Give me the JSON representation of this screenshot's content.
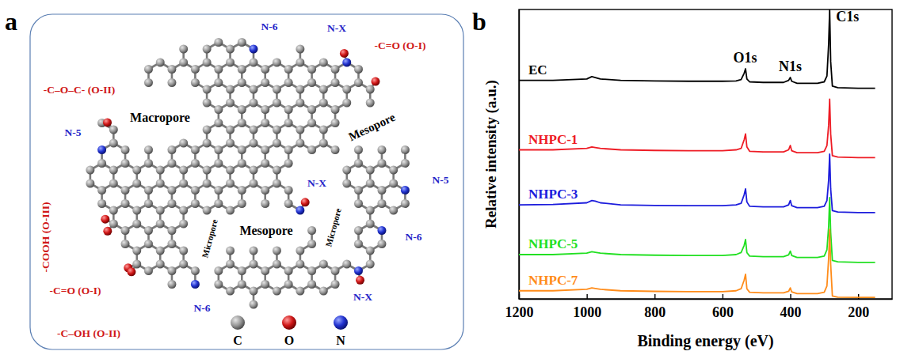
{
  "diagram": {
    "letter": "a",
    "groups": [
      "N-5",
      "N-6",
      "N-X",
      "-C=O (O-I)",
      "-C–O–C- (O-II)",
      "N-5",
      "-COOH (O-III)",
      "N-X",
      "N-6",
      "-C=O (O-I)",
      "-C–OH (O-II)",
      "N-6",
      "N-X"
    ],
    "pores": [
      "Macropore",
      "Mesopore",
      "Mesopore",
      "Micropore",
      "Micropore"
    ],
    "legend": [
      "C",
      "O",
      "N"
    ]
  },
  "chart_data": {
    "type": "line",
    "panel": "b",
    "x_label": "Binding energy (eV)",
    "y_label": "Relative intensity (a.u.)",
    "xlim": [
      1200,
      100
    ],
    "xticks": [
      1200,
      1000,
      800,
      600,
      400,
      200
    ],
    "ylim": [
      0,
      100
    ],
    "tick_labels": "x",
    "grid": false,
    "x": [
      1200,
      1100,
      1000,
      985,
      975,
      960,
      900,
      800,
      700,
      600,
      560,
      545,
      536,
      532,
      528,
      520,
      480,
      420,
      405,
      400,
      396,
      380,
      320,
      300,
      292,
      287,
      284,
      281,
      276,
      260,
      200,
      150
    ],
    "series": [
      {
        "name": "EC",
        "color": "#000000",
        "values": [
          75.5,
          75.5,
          76,
          76.8,
          76.5,
          76,
          75.5,
          75.3,
          75.2,
          75.2,
          75.3,
          75.8,
          78,
          79.5,
          76,
          75,
          74.8,
          74.8,
          75.5,
          76.5,
          75.2,
          74.5,
          74.5,
          75,
          77,
          88,
          100,
          82,
          73.5,
          73,
          72.8,
          72.8
        ]
      },
      {
        "name": "NHPC-1",
        "color": "#ee1c25",
        "values": [
          51.5,
          51.5,
          52,
          52.5,
          52.3,
          52,
          51.5,
          51.3,
          51.2,
          51.2,
          51.5,
          52,
          55,
          57,
          52.5,
          51,
          50.8,
          50.8,
          51.5,
          53,
          51.2,
          50.5,
          50.5,
          51,
          53,
          60,
          69,
          57,
          49.5,
          49,
          48.8,
          48.8
        ]
      },
      {
        "name": "NHPC-3",
        "color": "#1c1cdc",
        "values": [
          32.5,
          32.6,
          33.2,
          34,
          33.8,
          33.2,
          32.5,
          32.3,
          32.2,
          32.2,
          32.5,
          33,
          36,
          38,
          33.5,
          32,
          31.8,
          31.8,
          32.5,
          34,
          32.2,
          31.5,
          31.5,
          32,
          34,
          41,
          50,
          38,
          30.5,
          30,
          29.8,
          29.8
        ]
      },
      {
        "name": "NHPC-5",
        "color": "#22e022",
        "values": [
          15.3,
          15.3,
          15.8,
          16.3,
          16.1,
          15.8,
          15.3,
          15.1,
          15,
          15,
          15.3,
          16,
          18.5,
          20.5,
          16,
          14.8,
          14.6,
          14.6,
          15.2,
          16.5,
          15,
          14.3,
          14.3,
          14.8,
          17,
          25,
          35,
          23,
          13.3,
          12.8,
          12.6,
          12.6
        ]
      },
      {
        "name": "NHPC-7",
        "color": "#ff8c1a",
        "values": [
          2.8,
          2.8,
          3.3,
          3.8,
          3.6,
          3.3,
          2.8,
          2.6,
          2.5,
          2.5,
          2.8,
          3.5,
          6.5,
          8.5,
          3.5,
          2.3,
          2.1,
          2.1,
          2.6,
          3.8,
          2.4,
          1.8,
          1.8,
          2.3,
          4.5,
          14,
          24,
          12,
          1,
          0.6,
          0.5,
          0.5
        ]
      }
    ],
    "annotations": [
      {
        "text": "O1s",
        "x": 533
      },
      {
        "text": "N1s",
        "x": 400
      },
      {
        "text": "C1s",
        "x": 284
      }
    ]
  }
}
